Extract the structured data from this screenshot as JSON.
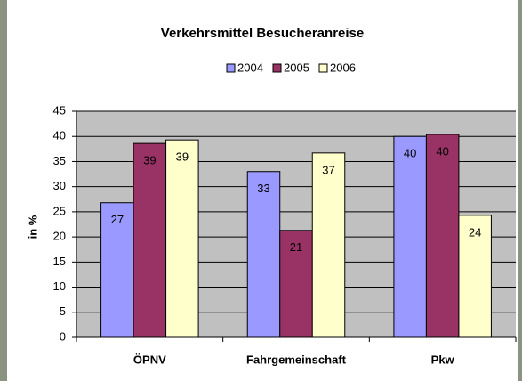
{
  "chart_data": {
    "type": "bar",
    "title": "Verkehrsmittel Besucheranreise",
    "ylabel": "in %",
    "categories": [
      "ÖPNV",
      "Fahrgemeinschaft",
      "Pkw"
    ],
    "series": [
      {
        "name": "2004",
        "color": "#9999ff",
        "values": [
          26.8,
          33.0,
          40.0
        ],
        "value_labels": [
          "27",
          "33",
          "40"
        ]
      },
      {
        "name": "2005",
        "color": "#993366",
        "values": [
          38.6,
          21.3,
          40.4
        ],
        "value_labels": [
          "39",
          "21",
          "40"
        ]
      },
      {
        "name": "2006",
        "color": "#ffffcc",
        "values": [
          39.3,
          36.7,
          24.3
        ],
        "value_labels": [
          "39",
          "37",
          "24"
        ]
      }
    ],
    "ylim": [
      0,
      45
    ],
    "yticks": [
      0,
      5,
      10,
      15,
      20,
      25,
      30,
      35,
      40,
      45
    ],
    "grid": true,
    "legend": "top"
  }
}
